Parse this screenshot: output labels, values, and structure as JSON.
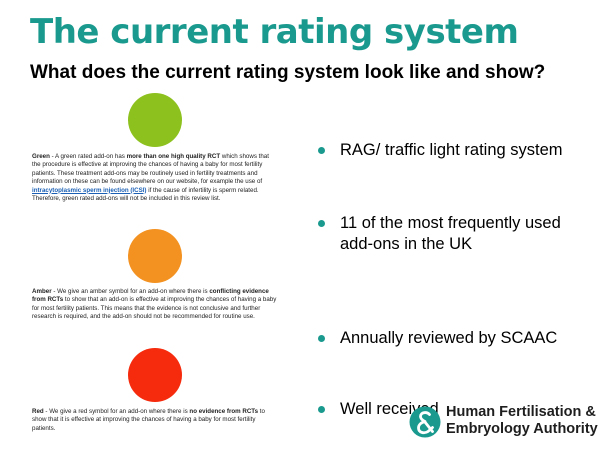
{
  "slide": {
    "title": "The current rating system",
    "subtitle": "What does the current rating system look like and show?"
  },
  "colors": {
    "title": "#1a9a8e",
    "green": "#8dc11e",
    "amber": "#f39221",
    "red": "#f62b0d",
    "bullet_dot": "#1a9a8e"
  },
  "ratings": {
    "green": {
      "label": "Green",
      "text_a": " - A green rated add-on has ",
      "bold_a": "more than one high quality RCT",
      "text_b": " which shows that the procedure is effective at improving the chances of having a baby for most fertility patients. These treatment add-ons may be routinely used in fertility treatments and information on these can be found elsewhere on our website, for example the use of ",
      "link": "intracytoplasmic sperm injection (ICSI)",
      "text_c": " if the cause of infertility is sperm related. Therefore, green rated add-ons will not be included in this review list."
    },
    "amber": {
      "label": "Amber",
      "text_a": " - We give an amber symbol for an add-on where there is ",
      "bold_a": "conflicting evidence from RCTs",
      "text_b": " to show that an add-on is effective at improving the chances of having a baby for most fertility patients. This means that the evidence is not conclusive and further research is required, and the add-on should not be recommended for routine use."
    },
    "red": {
      "label": "Red",
      "text_a": " - We give a red symbol for an add-on where there is ",
      "bold_a": "no evidence from RCTs",
      "text_b": " to show that it is effective at improving the chances of having a baby for most fertility patients."
    }
  },
  "bullets": [
    "RAG/ traffic light rating system",
    "11 of the most frequently used add-ons in the UK",
    "Annually reviewed by SCAAC",
    "Well received"
  ],
  "logo": {
    "icon": "hfea-ampersand-logo-icon",
    "line1": "Human Fertilisation &",
    "line2": "Embryology Authority"
  }
}
